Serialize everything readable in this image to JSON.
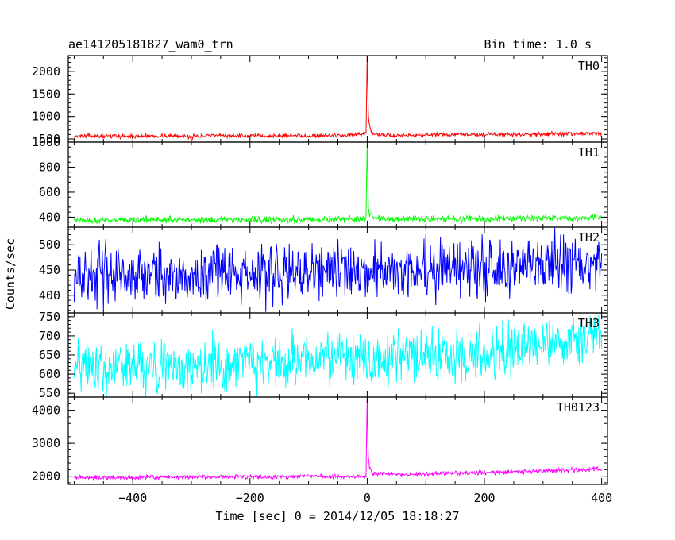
{
  "chart_data": {
    "type": "line",
    "title": "ae141205181827_wam0_trn",
    "bin_time_label": "Bin time: 1.0 s",
    "xlabel": "Time [sec] 0 = 2014/12/05 18:18:27",
    "ylabel": "Counts/sec",
    "xlim": [
      -510,
      410
    ],
    "x_ticks": [
      -400,
      -200,
      0,
      200,
      400
    ],
    "x_tick_labels": [
      "−400",
      "−200",
      "0",
      "200",
      "400"
    ],
    "panels": [
      {
        "name": "TH0",
        "color": "#ff0000",
        "ylim": [
          430,
          2350
        ],
        "y_ticks": [
          500,
          1000,
          1500,
          2000
        ],
        "y_tick_labels": [
          "500",
          "1000",
          "1500",
          "2000"
        ],
        "series": [
          {
            "name": "TH0",
            "x": [
              -500,
              -450,
              -400,
              -350,
              -300,
              -250,
              -200,
              -150,
              -100,
              -50,
              -10,
              -2,
              0,
              1,
              2,
              4,
              6,
              10,
              20,
              50,
              100,
              150,
              200,
              250,
              300,
              350,
              400
            ],
            "y": [
              560,
              565,
              560,
              570,
              560,
              575,
              565,
              570,
              575,
              580,
              590,
              620,
              2350,
              1600,
              1000,
              780,
              680,
              620,
              590,
              580,
              590,
              595,
              600,
              600,
              610,
              615,
              620
            ]
          }
        ],
        "noise": 40
      },
      {
        "name": "TH1",
        "color": "#00ff00",
        "ylim": [
          320,
          1000
        ],
        "y_ticks": [
          400,
          600,
          800,
          1000
        ],
        "y_tick_labels": [
          "400",
          "600",
          "800",
          "1000"
        ],
        "series": [
          {
            "name": "TH1",
            "x": [
              -500,
              -400,
              -300,
              -200,
              -100,
              -10,
              -2,
              0,
              1,
              2,
              4,
              10,
              50,
              100,
              200,
              300,
              400
            ],
            "y": [
              375,
              378,
              380,
              380,
              382,
              385,
              400,
              1000,
              700,
              480,
              420,
              395,
              385,
              385,
              388,
              390,
              395
            ]
          }
        ],
        "noise": 22
      },
      {
        "name": "TH2",
        "color": "#0000ff",
        "ylim": [
          365,
          535
        ],
        "y_ticks": [
          400,
          450,
          500
        ],
        "y_tick_labels": [
          "400",
          "450",
          "500"
        ],
        "series": [
          {
            "name": "TH2",
            "x": [
              -500,
              -400,
              -300,
              -200,
              -100,
              0,
              100,
              200,
              300,
              400
            ],
            "y": [
              440,
              442,
              440,
              443,
              445,
              447,
              452,
              455,
              460,
              465
            ]
          }
        ],
        "noise": 48
      },
      {
        "name": "TH3",
        "color": "#00ffff",
        "ylim": [
          540,
          760
        ],
        "y_ticks": [
          550,
          600,
          650,
          700,
          750
        ],
        "y_tick_labels": [
          "550",
          "600",
          "650",
          "700",
          "750"
        ],
        "series": [
          {
            "name": "TH3",
            "x": [
              -500,
              -400,
              -300,
              -200,
              -100,
              0,
              100,
              200,
              300,
              400
            ],
            "y": [
              618,
              622,
              625,
              628,
              632,
              640,
              645,
              655,
              672,
              695
            ]
          }
        ],
        "noise": 60
      },
      {
        "name": "TH0123",
        "color": "#ff00ff",
        "ylim": [
          1750,
          4400
        ],
        "y_ticks": [
          2000,
          3000,
          4000
        ],
        "y_tick_labels": [
          "2000",
          "3000",
          "4000"
        ],
        "series": [
          {
            "name": "TH0123",
            "x": [
              -500,
              -400,
              -300,
              -200,
              -100,
              -10,
              -2,
              0,
              1,
              2,
              4,
              6,
              10,
              20,
              50,
              100,
              200,
              300,
              400
            ],
            "y": [
              1960,
              1970,
              1975,
              1980,
              1990,
              2000,
              2050,
              4400,
              3200,
              2600,
              2250,
              2150,
              2100,
              2080,
              2060,
              2070,
              2110,
              2160,
              2210
            ]
          }
        ],
        "noise": 60
      }
    ]
  }
}
